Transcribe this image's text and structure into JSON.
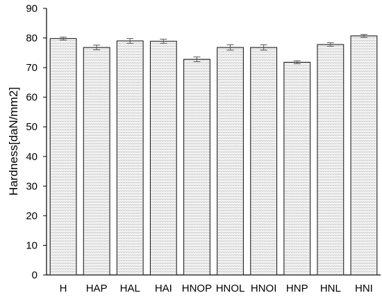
{
  "chart_data": {
    "type": "bar",
    "title": "",
    "xlabel": "",
    "ylabel": "Hardness[daN/mm2]",
    "ylim": [
      0,
      90
    ],
    "ytick_step": 10,
    "yticks": [
      "0",
      "10",
      "20",
      "30",
      "40",
      "50",
      "60",
      "70",
      "80",
      "90"
    ],
    "grid": false,
    "legend": "none",
    "categories": [
      "H",
      "HAP",
      "HAL",
      "HAI",
      "HNOP",
      "HNOL",
      "HNOI",
      "HNP",
      "HNL",
      "HNI"
    ],
    "values": [
      79.8,
      76.8,
      79.0,
      78.9,
      72.8,
      76.8,
      76.8,
      71.8,
      77.8,
      80.7
    ],
    "errors": [
      0.5,
      0.8,
      0.8,
      0.7,
      0.8,
      0.9,
      0.9,
      0.5,
      0.6,
      0.5
    ],
    "bar_fill": "#f3f3f3",
    "bar_pattern_stroke": "#bdbdbd",
    "bar_edge": "#222222",
    "axis_color": "#000000",
    "error_bar_color": "#555555"
  }
}
